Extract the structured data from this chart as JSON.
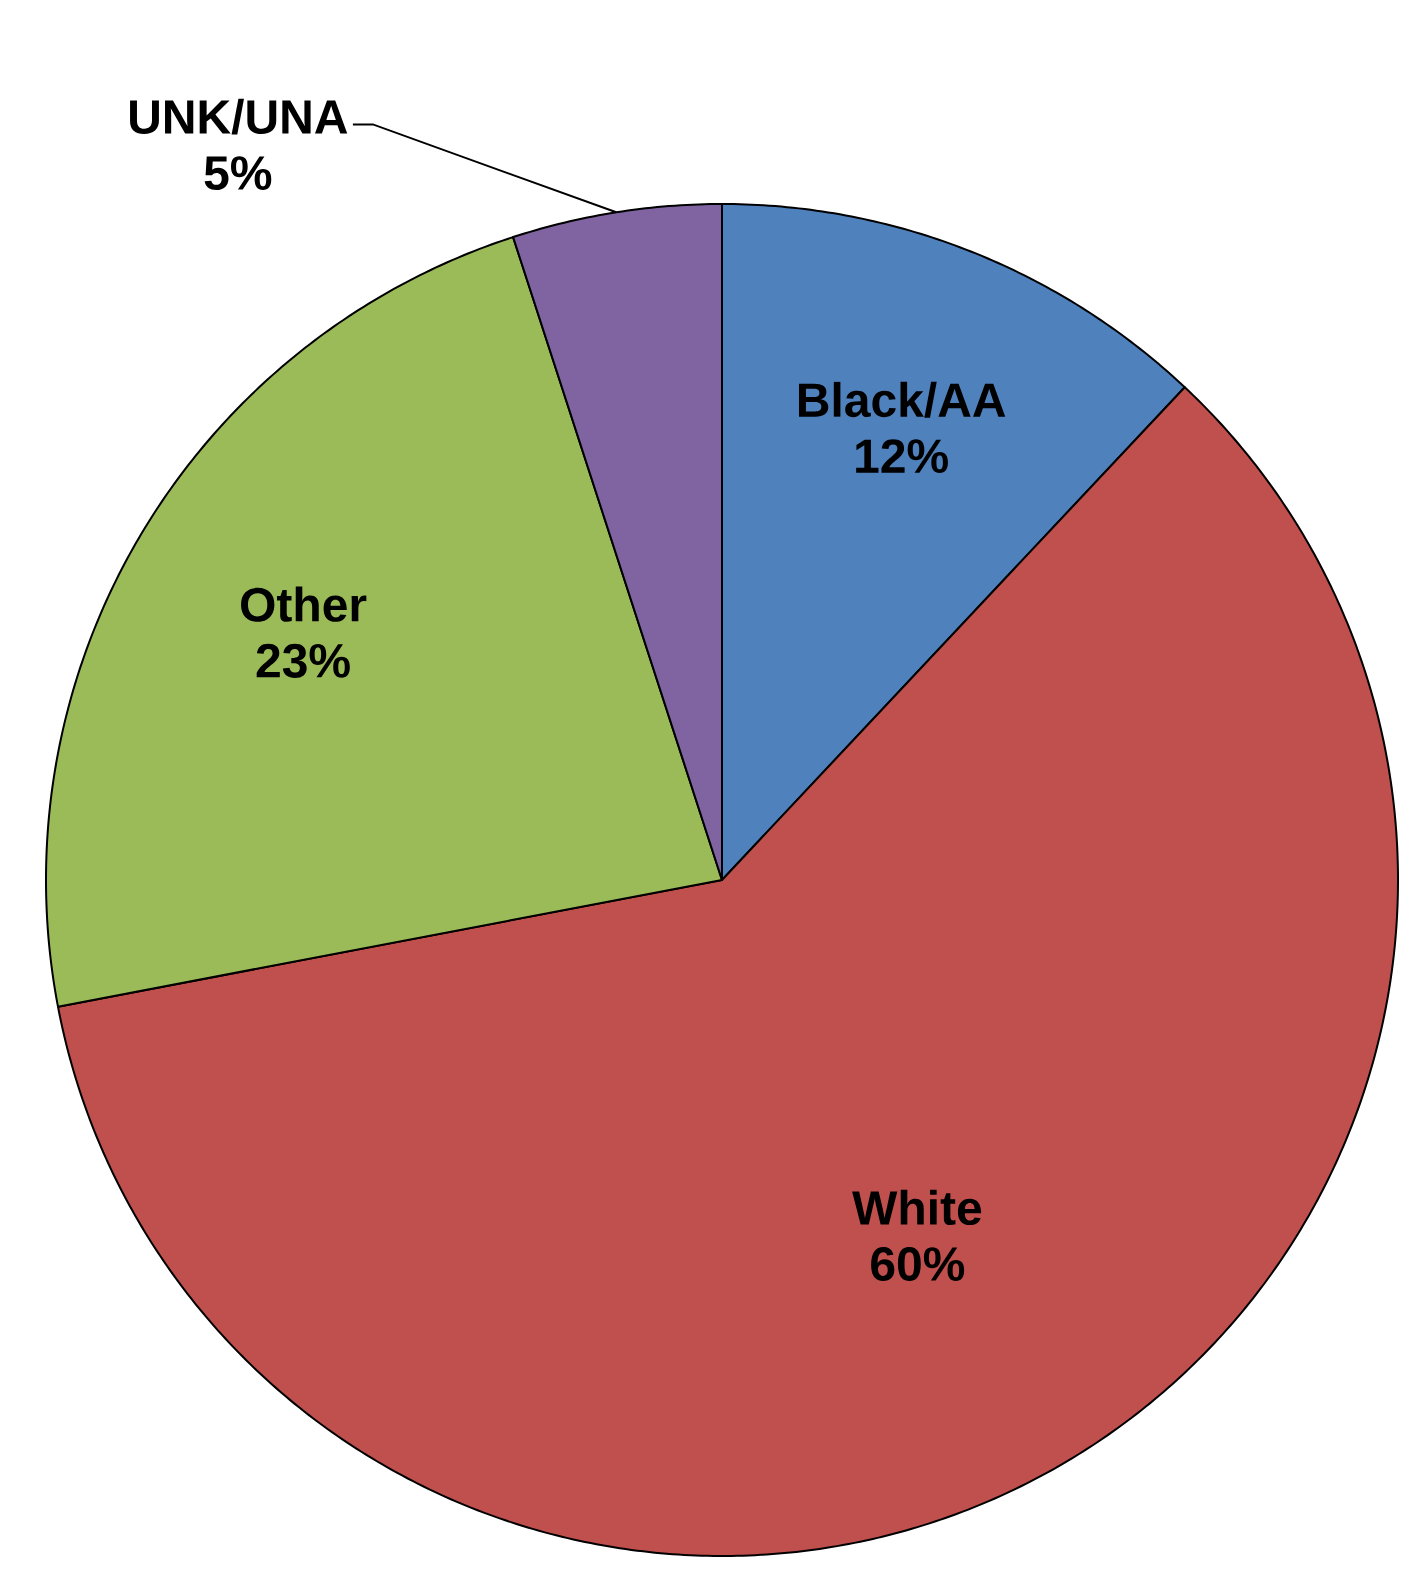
{
  "chart_data": {
    "type": "pie",
    "categories": [
      "Black/AA",
      "White",
      "Other",
      "UNK/UNA"
    ],
    "values": [
      12,
      60,
      23,
      5
    ],
    "value_labels": [
      "12%",
      "60%",
      "23%",
      "5%"
    ],
    "colors": [
      "#4f81bd",
      "#c0504d",
      "#9bbb59",
      "#8064a2"
    ]
  }
}
